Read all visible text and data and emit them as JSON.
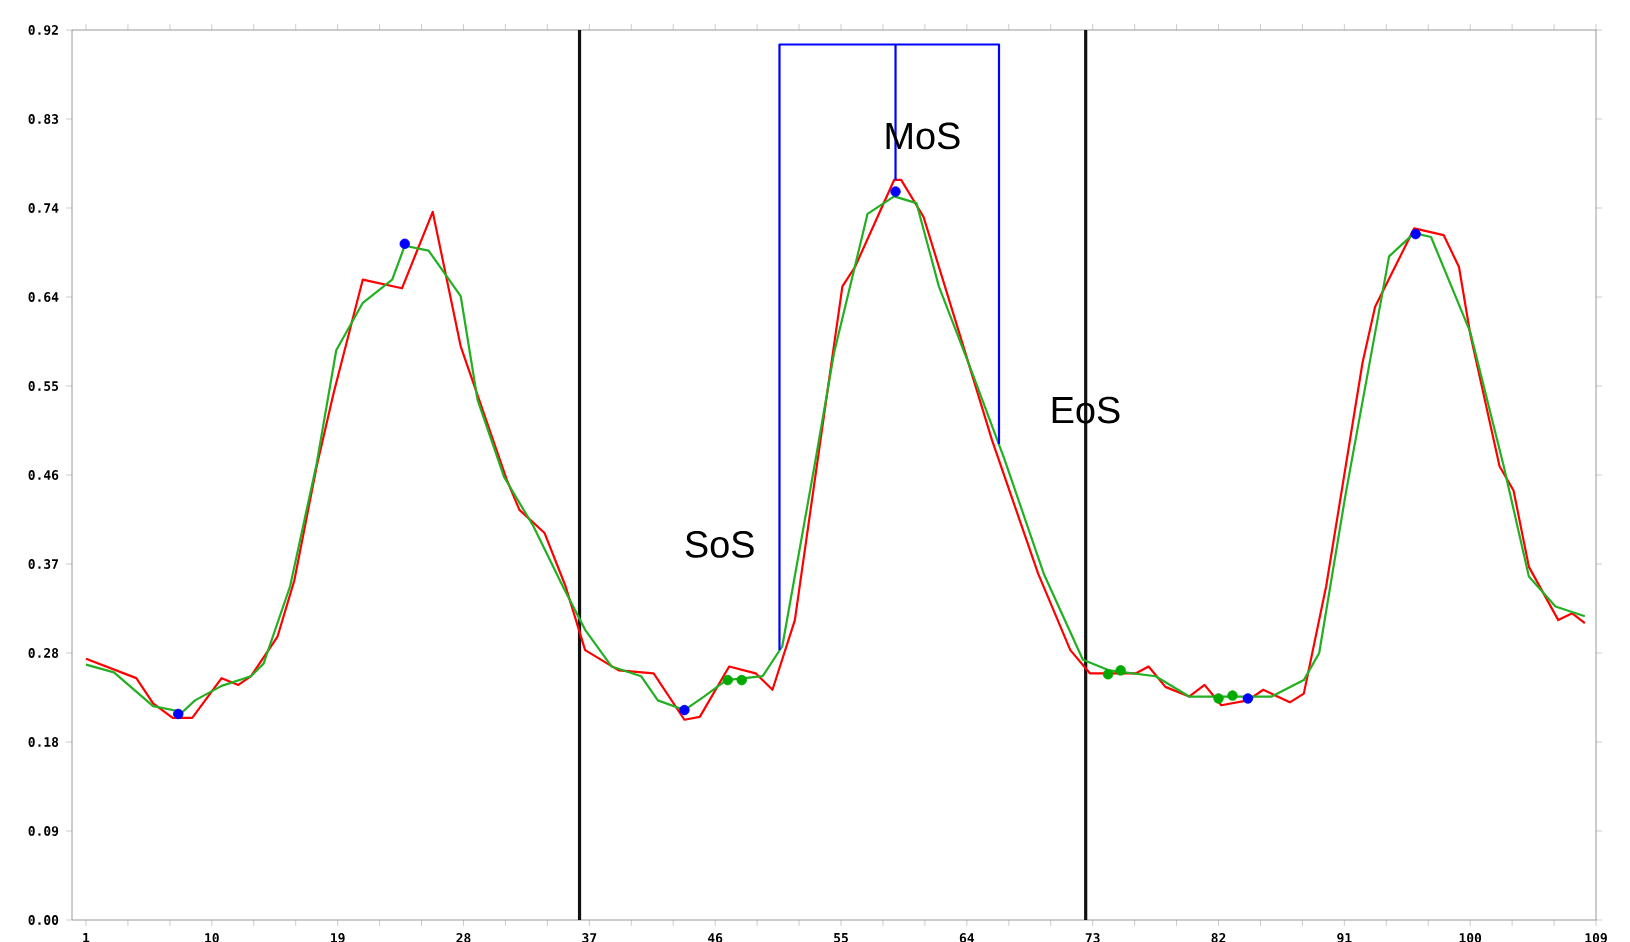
{
  "chart_data": {
    "type": "line",
    "xlim": [
      0,
      109
    ],
    "ylim": [
      0,
      0.92
    ],
    "xticks": [
      1,
      {
        "value": 4,
        "label": null
      },
      {
        "value": 7,
        "label": null
      },
      10,
      {
        "value": 13,
        "label": null
      },
      {
        "value": 16,
        "label": null
      },
      19,
      {
        "value": 22,
        "label": null
      },
      {
        "value": 25,
        "label": null
      },
      28,
      {
        "value": 31,
        "label": null
      },
      {
        "value": 34,
        "label": null
      },
      37,
      {
        "value": 40,
        "label": null
      },
      {
        "value": 43,
        "label": null
      },
      46,
      {
        "value": 49,
        "label": null
      },
      {
        "value": 52,
        "label": null
      },
      55,
      {
        "value": 58,
        "label": null
      },
      {
        "value": 61,
        "label": null
      },
      64,
      {
        "value": 67,
        "label": null
      },
      {
        "value": 70,
        "label": null
      },
      73,
      {
        "value": 76,
        "label": null
      },
      {
        "value": 79,
        "label": null
      },
      82,
      {
        "value": 85,
        "label": null
      },
      {
        "value": 88,
        "label": null
      },
      91,
      {
        "value": 94,
        "label": null
      },
      {
        "value": 97,
        "label": null
      },
      100,
      {
        "value": 103,
        "label": null
      },
      {
        "value": 106,
        "label": null
      },
      109
    ],
    "yticks": [
      {
        "value": 0,
        "label": "0.00"
      },
      {
        "value": 0.092,
        "label": "0.09"
      },
      {
        "value": 0.184,
        "label": "0.18"
      },
      {
        "value": 0.276,
        "label": "0.28"
      },
      {
        "value": 0.368,
        "label": "0.37"
      },
      {
        "value": 0.46,
        "label": "0.46"
      },
      {
        "value": 0.552,
        "label": "0.55"
      },
      {
        "value": 0.644,
        "label": "0.64"
      },
      {
        "value": 0.736,
        "label": "0.74"
      },
      {
        "value": 0.828,
        "label": "0.83"
      },
      {
        "value": 0.92,
        "label": "0.92"
      }
    ],
    "grid": false,
    "line_style": "solid",
    "ref_lines": [
      {
        "axis": "x",
        "value": 36.3,
        "color": "#111111"
      },
      {
        "axis": "x",
        "value": 72.5,
        "color": "#111111"
      }
    ],
    "annotations": [
      "SoS",
      "MoS",
      "EoS"
    ],
    "series": [
      {
        "color": "#ff0000",
        "x": [
          1,
          4.6,
          5.8,
          7.2,
          8.6,
          10.7,
          11.9,
          12.8,
          14.7,
          15.9,
          17.5,
          18.7,
          20.8,
          23.6,
          25.8,
          27.8,
          31.1,
          32.0,
          33.8,
          35.3,
          36.7,
          39.1,
          41.6,
          43.8,
          44.9,
          47.0,
          48.9,
          50.1,
          51.7,
          55.1,
          56.0,
          58.8,
          59.3,
          60.9,
          63.9,
          65.8,
          69.1,
          71.4,
          72.8,
          76.1,
          77.0,
          78.2,
          79.9,
          81.0,
          82.2,
          84.1,
          85.2,
          87.1,
          88.1,
          89.7,
          92.3,
          93.2,
          96.0,
          98.1,
          99.2,
          100.0,
          102.1,
          103.1,
          104.2,
          106.3,
          107.3,
          108.2
        ],
        "values": [
          0.27,
          0.25,
          0.224,
          0.209,
          0.209,
          0.25,
          0.243,
          0.252,
          0.293,
          0.351,
          0.469,
          0.544,
          0.662,
          0.653,
          0.732,
          0.593,
          0.455,
          0.424,
          0.4,
          0.345,
          0.279,
          0.258,
          0.255,
          0.207,
          0.21,
          0.262,
          0.255,
          0.238,
          0.31,
          0.655,
          0.675,
          0.765,
          0.765,
          0.727,
          0.586,
          0.496,
          0.358,
          0.279,
          0.255,
          0.255,
          0.262,
          0.241,
          0.231,
          0.243,
          0.222,
          0.227,
          0.238,
          0.225,
          0.234,
          0.345,
          0.576,
          0.634,
          0.715,
          0.708,
          0.675,
          0.606,
          0.469,
          0.444,
          0.365,
          0.31,
          0.317,
          0.307
        ]
      },
      {
        "color": "#22b022",
        "x": [
          1,
          3.0,
          5.8,
          7.9,
          8.8,
          10.7,
          12.8,
          13.7,
          15.6,
          17.5,
          18.9,
          20.8,
          22.9,
          23.8,
          25.5,
          27.8,
          29.0,
          30.9,
          33.0,
          35.1,
          36.7,
          38.6,
          40.7,
          41.9,
          43.8,
          45.2,
          46.8,
          49.4,
          50.8,
          53.1,
          54.5,
          56.9,
          58.8,
          60.4,
          62.0,
          64.4,
          66.7,
          69.5,
          72.3,
          74.2,
          77.5,
          79.9,
          82.2,
          85.8,
          88.1,
          89.2,
          91.1,
          94.2,
          96.0,
          97.2,
          100.0,
          102.4,
          104.2,
          106.1,
          108.2
        ],
        "values": [
          0.264,
          0.256,
          0.221,
          0.215,
          0.227,
          0.242,
          0.252,
          0.265,
          0.345,
          0.472,
          0.589,
          0.638,
          0.662,
          0.697,
          0.692,
          0.645,
          0.538,
          0.458,
          0.407,
          0.345,
          0.3,
          0.262,
          0.252,
          0.227,
          0.217,
          0.231,
          0.248,
          0.252,
          0.283,
          0.469,
          0.586,
          0.73,
          0.748,
          0.741,
          0.655,
          0.565,
          0.476,
          0.358,
          0.269,
          0.258,
          0.252,
          0.231,
          0.231,
          0.231,
          0.248,
          0.276,
          0.441,
          0.686,
          0.71,
          0.706,
          0.608,
          0.469,
          0.355,
          0.324,
          0.314
        ]
      },
      {
        "color": "#0000ff",
        "x": [
          50.6,
          50.6,
          66.3,
          66.3
        ],
        "values": [
          0.279,
          0.905,
          0.905,
          0.492
        ]
      },
      {
        "color": "#0000ff",
        "x": [
          58.9,
          58.9
        ],
        "values": [
          0.905,
          0.765
        ]
      },
      {
        "type": "scatter",
        "color": "#00aa00",
        "x": [
          46.9,
          47.9,
          74.1,
          75.0,
          82.0,
          83.0
        ],
        "values": [
          0.248,
          0.248,
          0.254,
          0.258,
          0.229,
          0.232
        ]
      },
      {
        "type": "scatter",
        "color": "#0000ff",
        "x": [
          7.6,
          23.8,
          43.8,
          58.9,
          84.1,
          96.1
        ],
        "values": [
          0.213,
          0.699,
          0.217,
          0.753,
          0.229,
          0.709
        ]
      }
    ]
  }
}
